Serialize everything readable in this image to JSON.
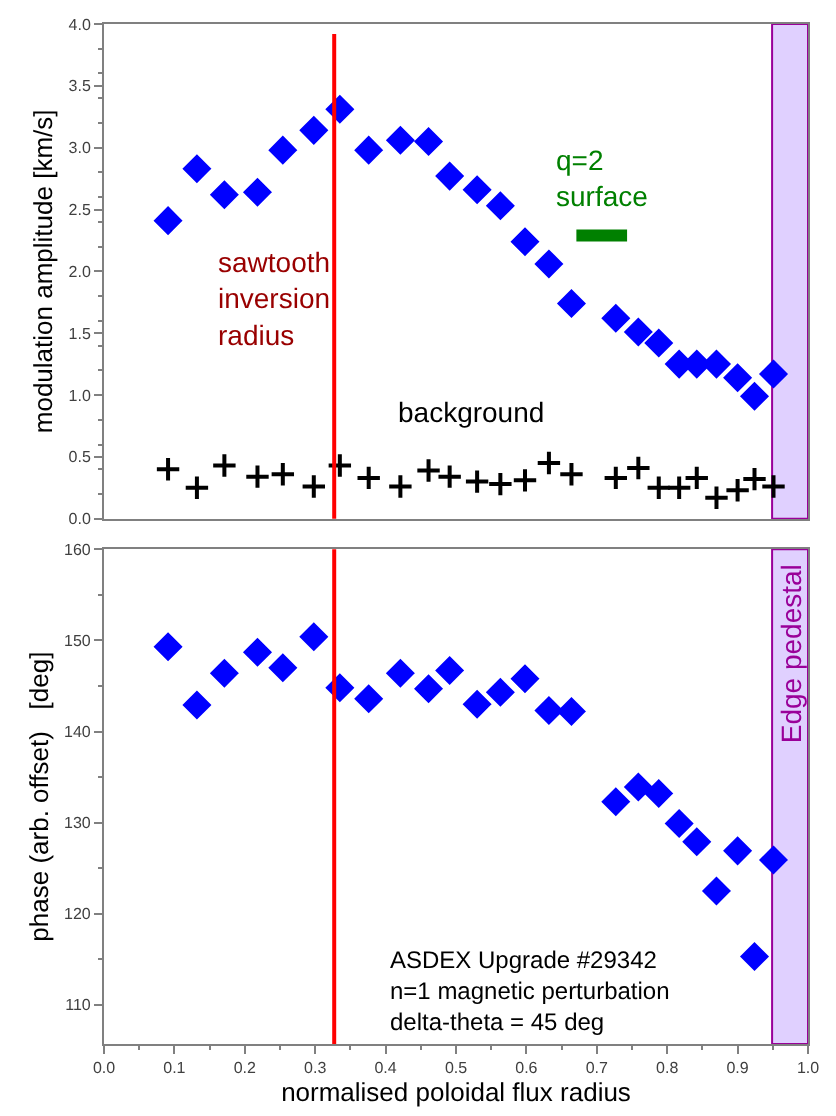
{
  "chart_data": [
    {
      "type": "scatter",
      "ylabel": "modulation amplitude [km/s]",
      "xlim": [
        0,
        1
      ],
      "ylim": [
        0,
        4
      ],
      "yticks": [
        {
          "value": 0,
          "label": "0.0"
        },
        0.5,
        {
          "value": 1,
          "label": "1.0"
        },
        1.5,
        {
          "value": 2,
          "label": "2.0"
        },
        2.5,
        {
          "value": 3,
          "label": "3.0"
        },
        3.5,
        {
          "value": 4,
          "label": "4.0"
        }
      ],
      "tick_labels": "y",
      "grid": false,
      "legend": false,
      "x": [
        0.091,
        0.132,
        0.171,
        0.218,
        0.254,
        0.298,
        0.335,
        0.376,
        0.421,
        0.461,
        0.491,
        0.53,
        0.563,
        0.598,
        0.632,
        0.664,
        0.727,
        0.759,
        0.788,
        0.817,
        0.842,
        0.87,
        0.9,
        0.924,
        0.951
      ],
      "series": [
        {
          "color": "#0000ff",
          "marker": "diamond",
          "values": [
            2.41,
            2.83,
            2.62,
            2.64,
            2.98,
            3.14,
            3.31,
            2.98,
            3.06,
            3.05,
            2.77,
            2.66,
            2.53,
            2.24,
            2.06,
            1.74,
            1.62,
            1.51,
            1.42,
            1.25,
            1.25,
            1.25,
            1.14,
            0.99,
            1.17
          ]
        },
        {
          "name": "background",
          "color": "#000000",
          "marker": "cross",
          "values": [
            0.4,
            0.25,
            0.43,
            0.34,
            0.36,
            0.26,
            0.43,
            0.33,
            0.26,
            0.39,
            0.34,
            0.3,
            0.28,
            0.31,
            0.45,
            0.36,
            0.33,
            0.41,
            0.25,
            0.25,
            0.33,
            0.17,
            0.23,
            0.32,
            0.26
          ]
        },
        {
          "name": "q=2 surface",
          "type": "line",
          "color": "#008000",
          "x": [
            0.671,
            0.743
          ],
          "values": [
            2.29,
            2.29
          ]
        }
      ],
      "ref_lines": [
        {
          "axis": "x",
          "value": 0.327,
          "label": "sawtooth inversion radius",
          "color": "#ff0000"
        }
      ],
      "bands": [
        {
          "axis": "x",
          "from": 0.949,
          "to": 1.0,
          "color": "#e0d0ff"
        }
      ]
    },
    {
      "type": "scatter",
      "xlabel": "normalised poloidal flux radius",
      "ylabel": "phase (arb. offset)   [deg]",
      "xlim": [
        0,
        1
      ],
      "ylim": [
        105.7,
        160
      ],
      "xticks": [
        {
          "value": 0,
          "label": "0.0"
        },
        0.1,
        0.2,
        0.3,
        0.4,
        0.5,
        0.6,
        0.7,
        0.8,
        0.9,
        {
          "value": 1,
          "label": "1.0"
        }
      ],
      "yticks": [
        110,
        120,
        130,
        140,
        150,
        160
      ],
      "grid": false,
      "legend": false,
      "x": [
        0.091,
        0.132,
        0.171,
        0.218,
        0.254,
        0.298,
        0.335,
        0.376,
        0.421,
        0.461,
        0.491,
        0.53,
        0.563,
        0.598,
        0.632,
        0.664,
        0.727,
        0.759,
        0.788,
        0.817,
        0.842,
        0.87,
        0.9,
        0.924,
        0.951
      ],
      "series": [
        {
          "color": "#0000ff",
          "marker": "diamond",
          "values": [
            149.3,
            142.9,
            146.4,
            148.7,
            147.0,
            150.4,
            144.8,
            143.6,
            146.4,
            144.7,
            146.7,
            143.0,
            144.3,
            145.8,
            142.3,
            142.2,
            132.3,
            133.9,
            133.2,
            129.9,
            127.9,
            122.5,
            126.9,
            115.3,
            125.9
          ]
        }
      ],
      "ref_lines": [
        {
          "axis": "x",
          "value": 0.327,
          "color": "#ff0000"
        }
      ],
      "bands": [
        {
          "axis": "x",
          "from": 0.949,
          "to": 1.0,
          "color": "#e0d0ff",
          "label": "Edge pedestal"
        }
      ],
      "annotations": [
        "ASDEX Upgrade #29342\nn=1 magnetic perturbation\ndelta-theta = 45 deg"
      ]
    }
  ]
}
